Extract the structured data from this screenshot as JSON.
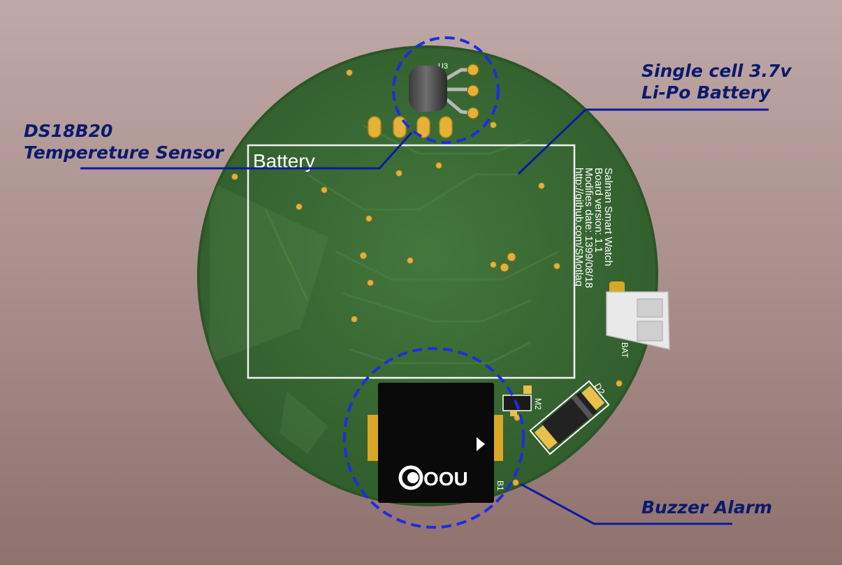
{
  "callouts": {
    "sensor": {
      "line1": "DS18B20",
      "line2": "Tempereture Sensor"
    },
    "battery": {
      "line1": "Single cell 3.7v",
      "line2": "Li-Po Battery"
    },
    "buzzer": {
      "line1": "Buzzer Alarm"
    }
  },
  "board": {
    "battery_outline_label": "Battery",
    "info_lines": [
      "Salman Smart Watch",
      "Board version: 1.1",
      "Modifies date: 1399/08/18",
      "http://github.com/SMotlaq"
    ],
    "silkscreen": {
      "sensor_ref": "U3",
      "connector_ref": "BAT",
      "diode_ref": "D2",
      "mosfet_ref": "M2",
      "buzzer_ref": "B1",
      "buzzer_brand": "OOU"
    }
  },
  "colors": {
    "callout_text": "#0b1a6e",
    "callout_line": "#0a1aa0",
    "pcb": "#3a6b35",
    "pad": "#d9a824",
    "silkscreen": "#ffffff"
  }
}
